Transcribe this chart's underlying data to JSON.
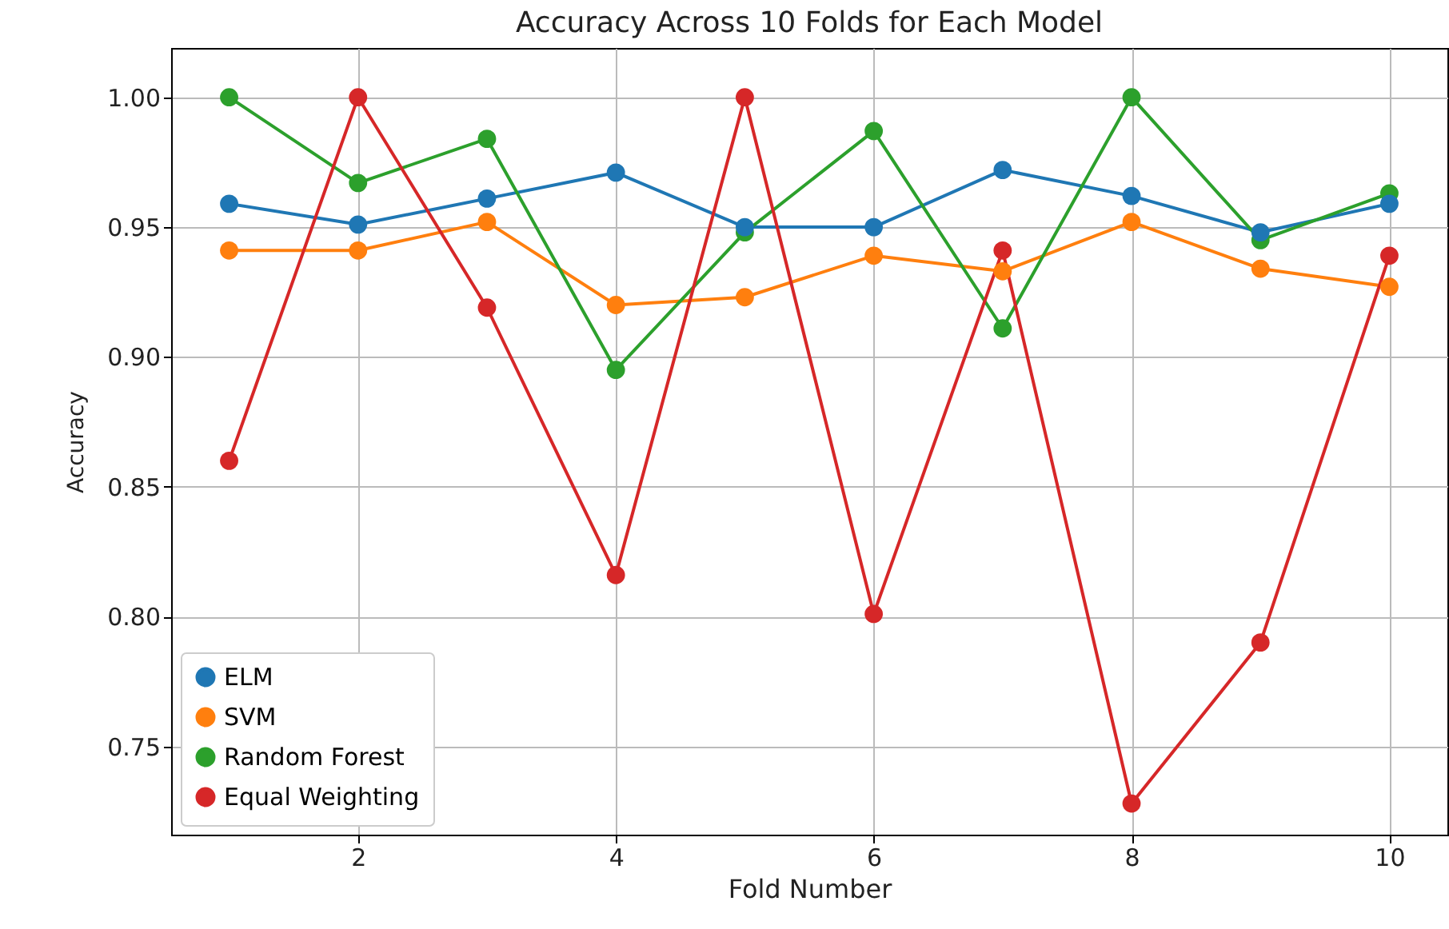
{
  "chart_data": {
    "type": "line",
    "title": "Accuracy Across 10 Folds for Each Model",
    "xlabel": "Fold Number",
    "ylabel": "Accuracy",
    "x": [
      1,
      2,
      3,
      4,
      5,
      6,
      7,
      8,
      9,
      10
    ],
    "series": [
      {
        "name": "ELM",
        "color": "#1f77b4",
        "values": [
          0.959,
          0.951,
          0.961,
          0.971,
          0.95,
          0.95,
          0.972,
          0.962,
          0.948,
          0.959
        ]
      },
      {
        "name": "SVM",
        "color": "#ff7f0e",
        "values": [
          0.941,
          0.941,
          0.952,
          0.92,
          0.923,
          0.939,
          0.933,
          0.952,
          0.934,
          0.927
        ]
      },
      {
        "name": "Random Forest",
        "color": "#2ca02c",
        "values": [
          1.0,
          0.967,
          0.984,
          0.895,
          0.948,
          0.987,
          0.911,
          1.0,
          0.945,
          0.963
        ]
      },
      {
        "name": "Equal Weighting",
        "color": "#d62728",
        "values": [
          0.86,
          1.0,
          0.919,
          0.816,
          1.0,
          0.801,
          0.941,
          0.728,
          0.79,
          0.939
        ]
      }
    ],
    "xlim": [
      0.55,
      10.45
    ],
    "xticks": [
      2,
      4,
      6,
      8,
      10
    ],
    "ylim": [
      0.716,
      1.019
    ],
    "yticks": [
      {
        "value": 0.75,
        "label": "0.75"
      },
      {
        "value": 0.8,
        "label": "0.80"
      },
      {
        "value": 0.85,
        "label": "0.85"
      },
      {
        "value": 0.9,
        "label": "0.90"
      },
      {
        "value": 0.95,
        "label": "0.95"
      },
      {
        "value": 1.0,
        "label": "1.00"
      }
    ],
    "grid": true,
    "legend": "bottom left",
    "marker": "circle",
    "line_style": "solid"
  }
}
